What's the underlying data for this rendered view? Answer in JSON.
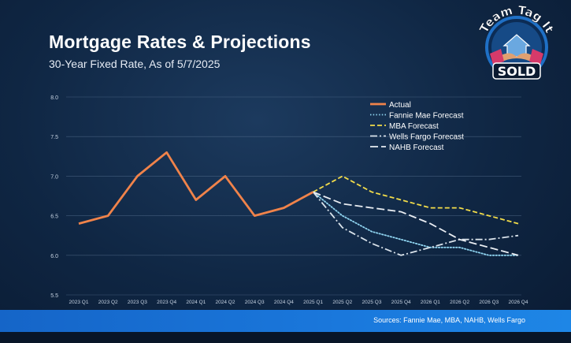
{
  "header": {
    "title": "Mortgage Rates & Projections",
    "subtitle": "30-Year Fixed Rate, As of 5/7/2025"
  },
  "logo": {
    "line1": "Team Tag It",
    "badge": "SOLD"
  },
  "footer": {
    "sources": "Sources: Fannie Mae, MBA, NAHB, Wells Fargo"
  },
  "chart_data": {
    "type": "line",
    "title": "Mortgage Rates & Projections",
    "subtitle": "30-Year Fixed Rate, As of 5/7/2025",
    "xlabel": "",
    "ylabel": "",
    "ylim": [
      5.5,
      8.0
    ],
    "yticks": [
      "5.5",
      "6.0",
      "6.5",
      "7.0",
      "7.5",
      "8.0"
    ],
    "grid": true,
    "legend_position": "top-right",
    "categories": [
      "2023 Q1",
      "2023 Q2",
      "2023 Q3",
      "2023 Q4",
      "2024 Q1",
      "2024 Q2",
      "2024 Q3",
      "2024 Q4",
      "2025 Q1",
      "2025 Q2",
      "2025 Q3",
      "2025 Q4",
      "2026 Q1",
      "2026 Q2",
      "2026 Q3",
      "2026 Q4"
    ],
    "series": [
      {
        "name": "Actual",
        "color": "#f0834a",
        "dash": "solid",
        "values": [
          6.4,
          6.5,
          7.0,
          7.3,
          6.7,
          7.0,
          6.5,
          6.6,
          6.8,
          null,
          null,
          null,
          null,
          null,
          null,
          null
        ]
      },
      {
        "name": "Fannie Mae Forecast",
        "color": "#8fd4f0",
        "dash": "dotted",
        "values": [
          null,
          null,
          null,
          null,
          null,
          null,
          null,
          null,
          6.8,
          6.5,
          6.3,
          6.2,
          6.1,
          6.1,
          6.0,
          6.0
        ]
      },
      {
        "name": "MBA Forecast",
        "color": "#f2dc4a",
        "dash": "dashed",
        "values": [
          null,
          null,
          null,
          null,
          null,
          null,
          null,
          null,
          6.8,
          7.0,
          6.8,
          6.7,
          6.6,
          6.6,
          6.5,
          6.4
        ]
      },
      {
        "name": "Wells Fargo Forecast",
        "color": "#d9e2ea",
        "dash": "dashdot",
        "values": [
          null,
          null,
          null,
          null,
          null,
          null,
          null,
          null,
          6.8,
          6.35,
          6.15,
          6.0,
          6.1,
          6.2,
          6.2,
          6.25
        ]
      },
      {
        "name": "NAHB Forecast",
        "color": "#e9edf2",
        "dash": "longdash",
        "values": [
          null,
          null,
          null,
          null,
          null,
          null,
          null,
          null,
          6.8,
          6.65,
          6.6,
          6.55,
          6.4,
          6.2,
          6.1,
          6.0
        ]
      }
    ]
  }
}
